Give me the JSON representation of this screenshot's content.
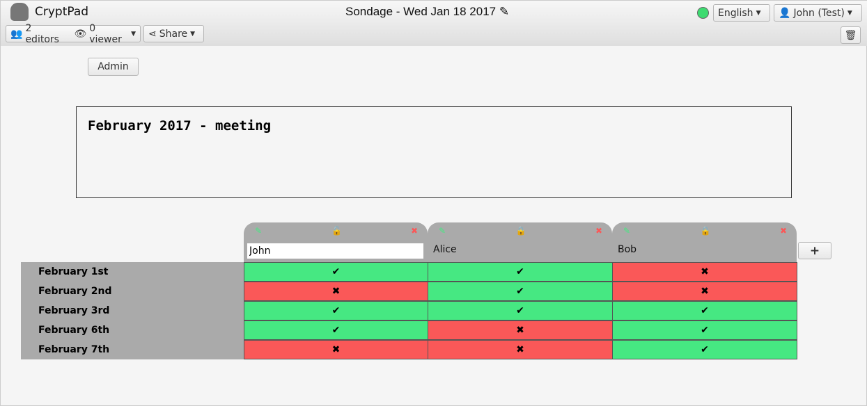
{
  "app": {
    "name": "CryptPad",
    "title": "Sondage - Wed Jan 18 2017",
    "edit_icon": "pencil-icon"
  },
  "toolbar": {
    "editors": "2 editors",
    "viewers": "0 viewer",
    "share": "Share",
    "language": "English",
    "user": "John (Test)",
    "status_color": "#3ddb70"
  },
  "admin_label": "Admin",
  "description": "February 2017 - meeting",
  "colors": {
    "yes": "#46e882",
    "no": "#fa5858",
    "header": "#aaaaaa"
  },
  "columns": [
    {
      "name": "John",
      "editing": true,
      "locked": false
    },
    {
      "name": "Alice",
      "editing": false,
      "locked": true
    },
    {
      "name": "Bob",
      "editing": false,
      "locked": true
    }
  ],
  "rows": [
    {
      "label": "February 1st",
      "votes": [
        true,
        true,
        false
      ]
    },
    {
      "label": "February 2nd",
      "votes": [
        false,
        true,
        false
      ]
    },
    {
      "label": "February 3rd",
      "votes": [
        true,
        true,
        true
      ]
    },
    {
      "label": "February 6th",
      "votes": [
        true,
        false,
        true
      ]
    },
    {
      "label": "February 7th",
      "votes": [
        false,
        false,
        true
      ]
    }
  ],
  "add_column_label": "+"
}
